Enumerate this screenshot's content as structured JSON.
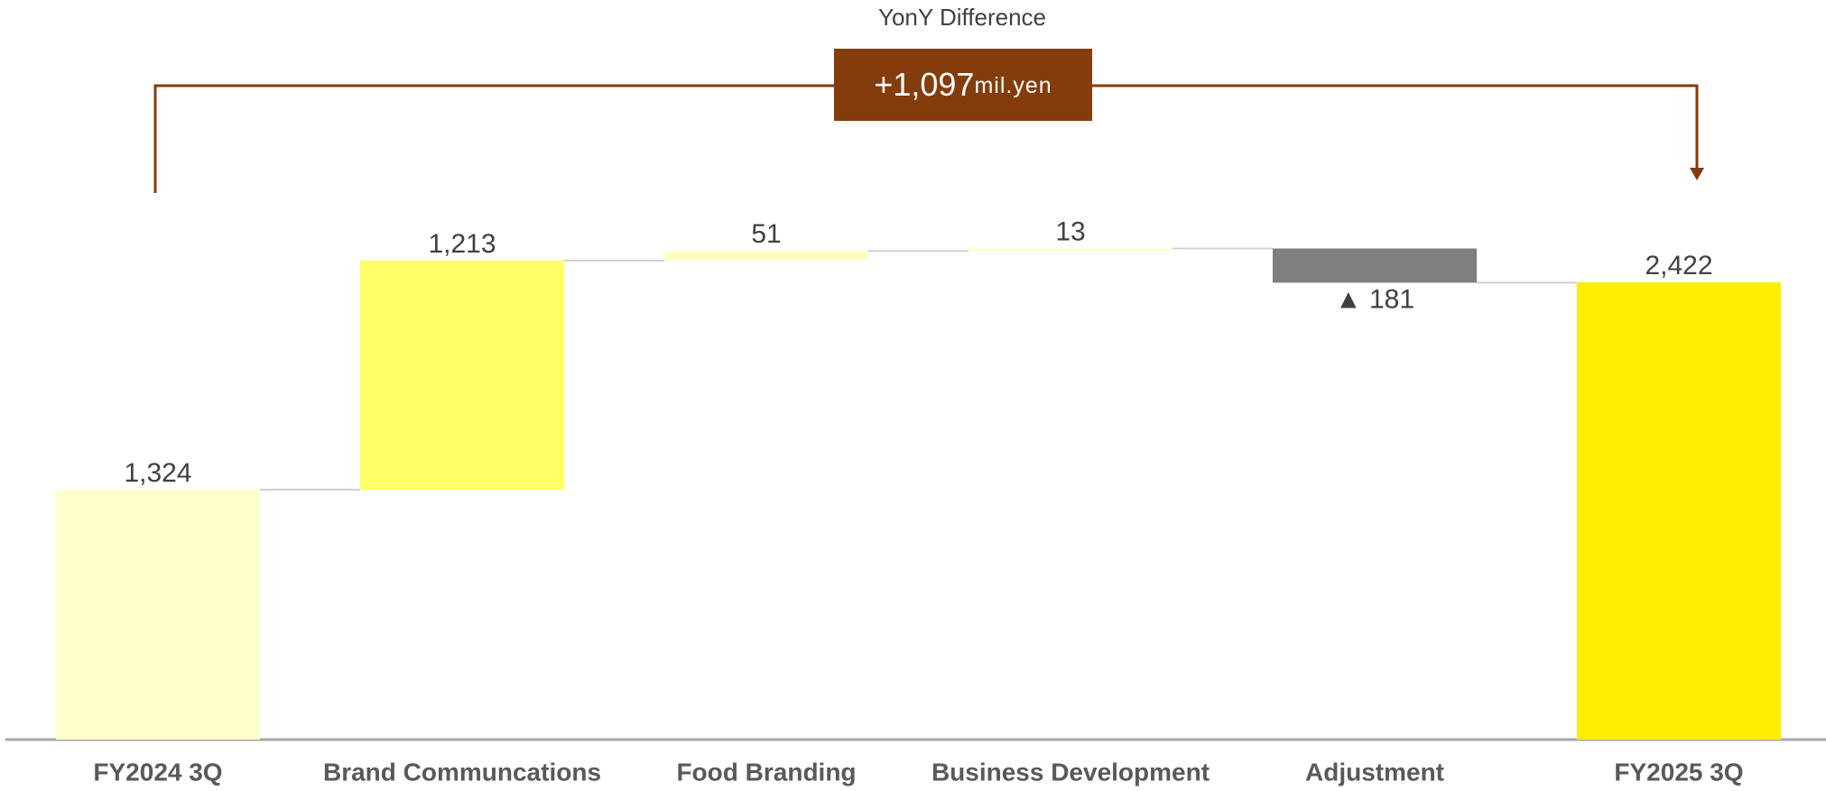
{
  "chart_data": {
    "type": "waterfall",
    "categories": [
      "FY2024 3Q",
      "Brand Communcations",
      "Food Branding",
      "Business Development",
      "Adjustment",
      "FY2025 3Q"
    ],
    "values": [
      1324,
      1213,
      51,
      13,
      -181,
      2422
    ],
    "value_labels": [
      "1,324",
      "1,213",
      "51",
      "13",
      "▲ 181",
      "2,422"
    ],
    "measure": [
      "total",
      "relative",
      "relative",
      "relative",
      "relative",
      "total"
    ],
    "colors": [
      "#feffcc",
      "#ffff66",
      "#ffffc4",
      "#ffffc4",
      "#7f7f7f",
      "#ffee00"
    ],
    "ylim": [
      0,
      3000
    ],
    "annotation": {
      "title": "YonY Difference",
      "value": "+1,097",
      "unit": "mil.yen",
      "color": "#843c0c"
    }
  }
}
